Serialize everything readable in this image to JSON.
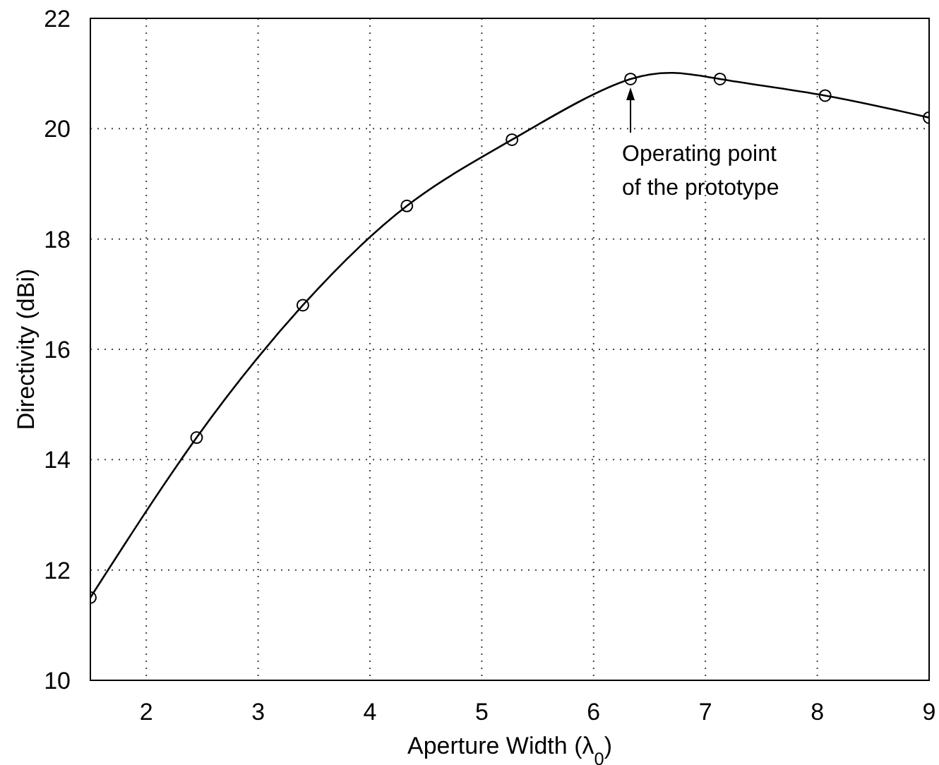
{
  "chart_data": {
    "type": "line",
    "xlabel": "Aperture Width (λ$_{0}$)",
    "ylabel": "Directivity (dBi)",
    "x": [
      1.5,
      2.45,
      3.4,
      4.33,
      5.27,
      6.33,
      7.13,
      8.07,
      9
    ],
    "series": [
      {
        "color": "#000000",
        "values": [
          11.5,
          14.4,
          16.8,
          18.6,
          19.8,
          20.9,
          20.9,
          20.6,
          20.2
        ]
      }
    ],
    "xlim": [
      1.5,
      9
    ],
    "xticks": [
      {
        "value": 1.5,
        "label": null
      },
      2,
      3,
      4,
      5,
      6,
      7,
      8,
      9
    ],
    "ylim": [
      10,
      22
    ],
    "yticks": [
      10,
      12,
      14,
      16,
      18,
      20,
      22
    ],
    "grid": true,
    "marker": "circle",
    "line_style": "solid",
    "annotations": [
      {
        "text": "Operating point of the prototype",
        "x": 6.33,
        "y": 20.9
      }
    ]
  }
}
